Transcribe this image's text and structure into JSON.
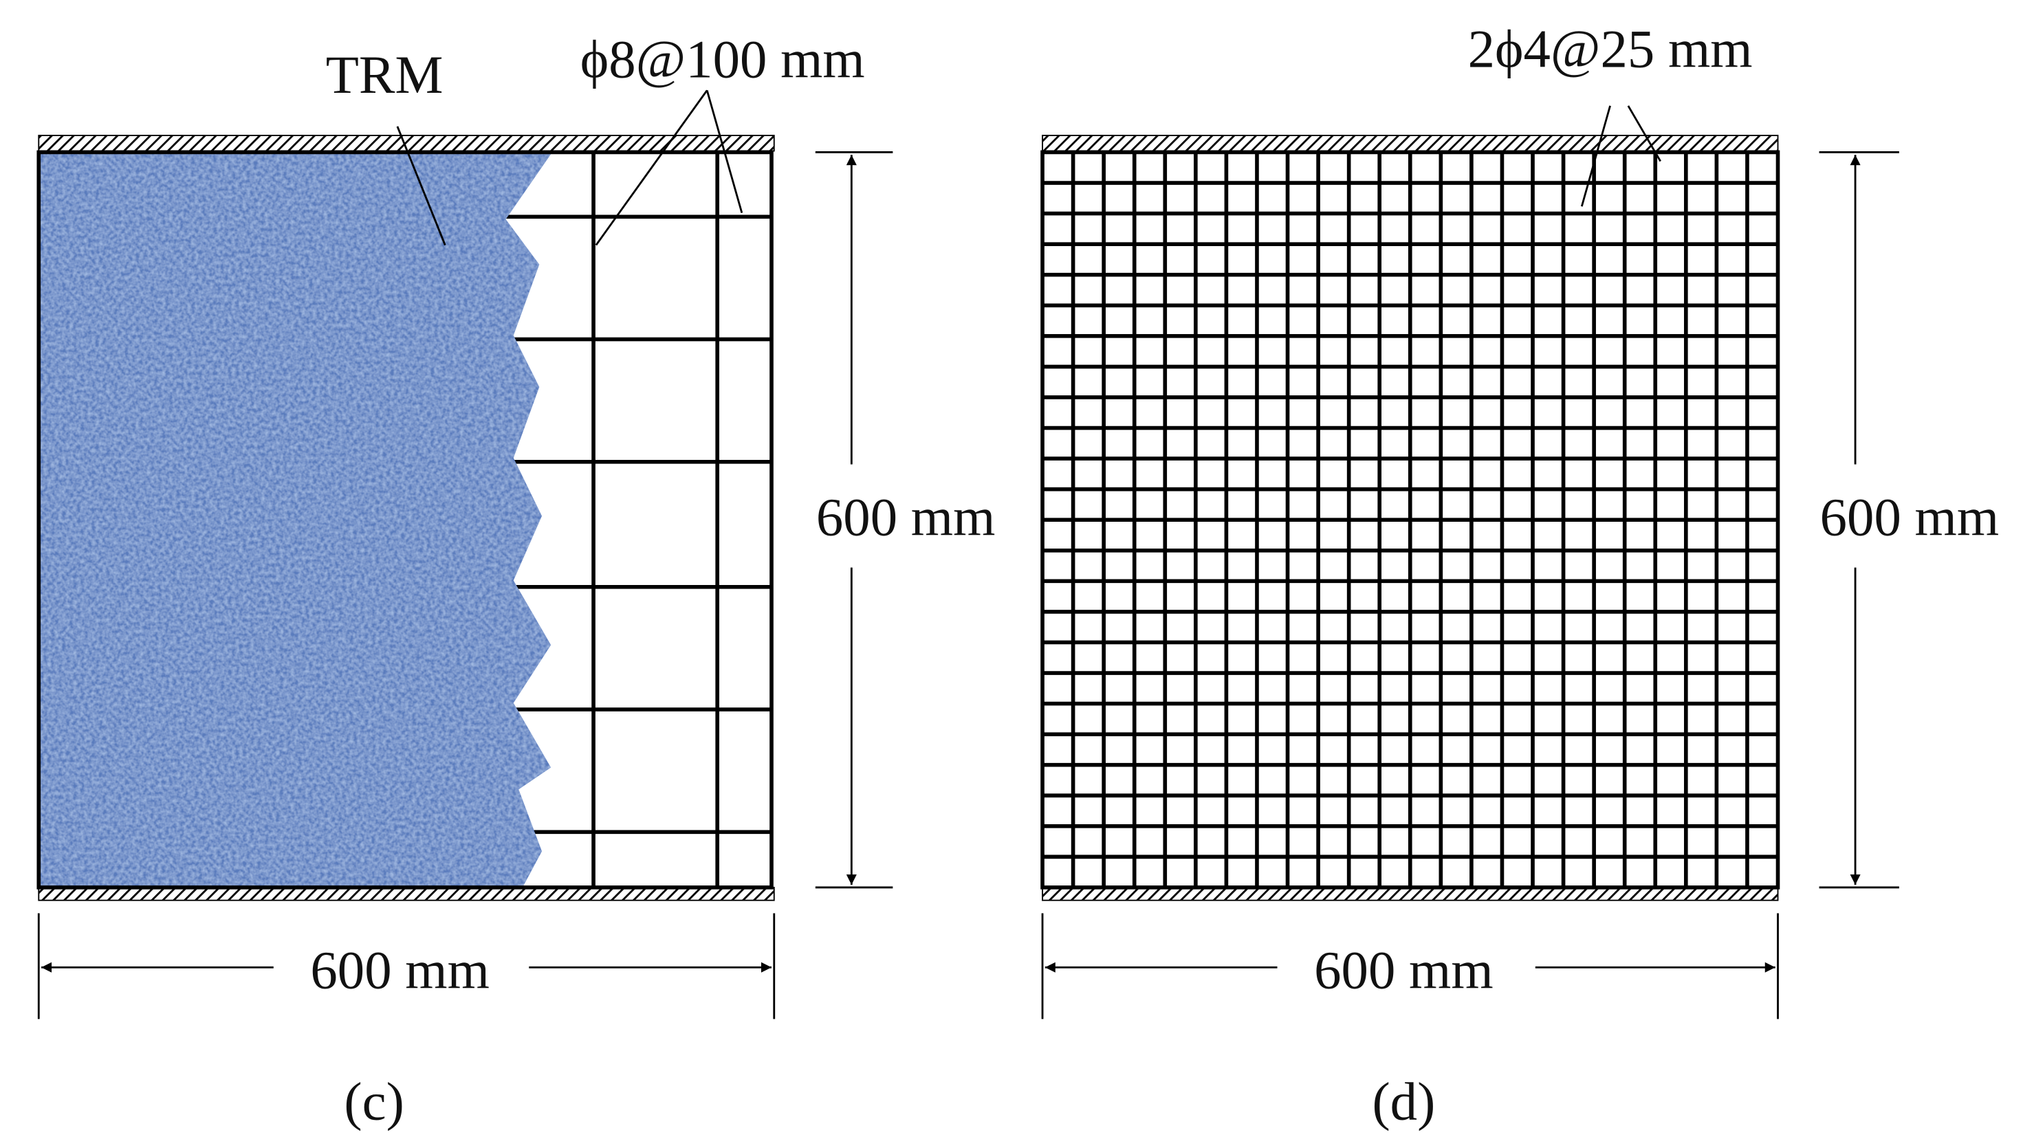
{
  "panels": [
    {
      "annotation_top": "TRM",
      "annotation_rebar": "ϕ8@100 mm",
      "height_dim": "600 mm",
      "width_dim": "600 mm",
      "label": "(c)"
    },
    {
      "annotation_rebar": "2ϕ4@25 mm",
      "height_dim": "600 mm",
      "width_dim": "600 mm",
      "label": "(d)"
    }
  ]
}
